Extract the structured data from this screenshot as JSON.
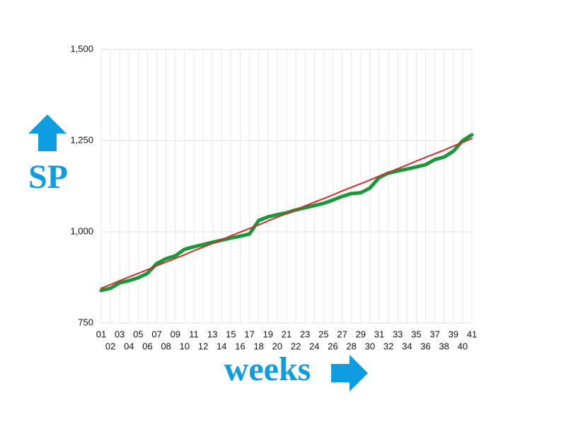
{
  "chart_data": {
    "type": "line",
    "y_label": "SP",
    "x_label": "weeks",
    "categories": [
      "01",
      "02",
      "03",
      "04",
      "05",
      "06",
      "07",
      "08",
      "09",
      "10",
      "11",
      "12",
      "13",
      "14",
      "15",
      "16",
      "17",
      "18",
      "19",
      "20",
      "21",
      "22",
      "23",
      "24",
      "25",
      "26",
      "27",
      "28",
      "29",
      "30",
      "31",
      "32",
      "33",
      "34",
      "35",
      "36",
      "37",
      "38",
      "39",
      "40",
      "41"
    ],
    "series": [
      {
        "color": "#17993a",
        "values": [
          839,
          845,
          860,
          866,
          874,
          886,
          913,
          926,
          934,
          952,
          959,
          965,
          971,
          977,
          983,
          988,
          994,
          1031,
          1041,
          1047,
          1052,
          1060,
          1066,
          1072,
          1078,
          1087,
          1097,
          1105,
          1107,
          1120,
          1149,
          1161,
          1167,
          1172,
          1178,
          1184,
          1198,
          1205,
          1221,
          1250,
          1266
        ]
      },
      {
        "color": "#d42a2a",
        "values": [
          845,
          855,
          866,
          876,
          886,
          896,
          907,
          917,
          927,
          937,
          948,
          958,
          968,
          978,
          989,
          999,
          1009,
          1019,
          1030,
          1040,
          1050,
          1060,
          1071,
          1081,
          1091,
          1101,
          1112,
          1122,
          1132,
          1142,
          1153,
          1163,
          1173,
          1183,
          1194,
          1204,
          1214,
          1224,
          1235,
          1245,
          1256
        ]
      }
    ],
    "ylim": [
      750,
      1500
    ],
    "yticks": [
      750,
      {
        "value": 1000,
        "label": "1,000"
      },
      {
        "value": 1250,
        "label": "1,250"
      },
      {
        "value": 1500,
        "label": "1,500"
      }
    ],
    "grid": true
  }
}
